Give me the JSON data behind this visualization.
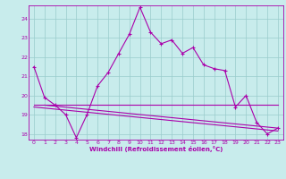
{
  "xlabel": "Windchill (Refroidissement éolien,°C)",
  "background_color": "#c8ecec",
  "line_color": "#aa00aa",
  "grid_color": "#99cccc",
  "xlim": [
    -0.5,
    23.5
  ],
  "ylim": [
    17.7,
    24.7
  ],
  "xticks": [
    0,
    1,
    2,
    3,
    4,
    5,
    6,
    7,
    8,
    9,
    10,
    11,
    12,
    13,
    14,
    15,
    16,
    17,
    18,
    19,
    20,
    21,
    22,
    23
  ],
  "yticks": [
    18,
    19,
    20,
    21,
    22,
    23,
    24
  ],
  "line1_x": [
    0,
    1,
    2,
    3,
    4,
    5,
    6,
    7,
    8,
    9,
    10,
    11,
    12,
    13,
    14,
    15,
    16,
    17,
    18,
    19,
    20,
    21,
    22,
    23
  ],
  "line1_y": [
    21.5,
    19.9,
    19.5,
    19.0,
    17.8,
    19.0,
    20.5,
    21.2,
    22.2,
    23.2,
    24.6,
    23.3,
    22.7,
    22.9,
    22.2,
    22.5,
    21.6,
    21.4,
    21.3,
    19.4,
    20.0,
    18.6,
    18.0,
    18.3
  ],
  "line2_x": [
    0,
    23
  ],
  "line2_y": [
    19.5,
    19.5
  ],
  "line3_x": [
    0,
    23
  ],
  "line3_y": [
    19.4,
    18.15
  ],
  "line4_x": [
    1,
    23
  ],
  "line4_y": [
    19.5,
    18.3
  ]
}
